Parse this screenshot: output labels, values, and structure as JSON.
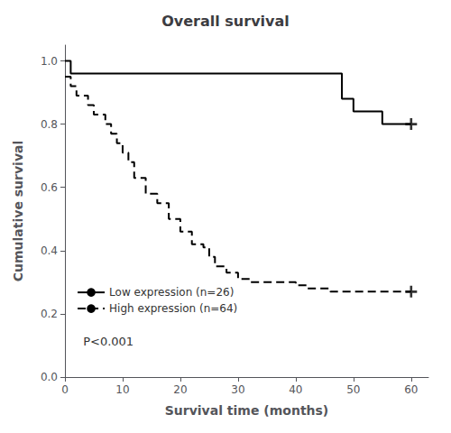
{
  "chart_data": {
    "type": "line",
    "title": "Overall survival",
    "xlabel": "Survival time (months)",
    "ylabel": "Cumulative survival",
    "xlim": [
      0,
      63
    ],
    "ylim": [
      0.0,
      1.05
    ],
    "xticks": [
      0,
      10,
      20,
      30,
      40,
      50,
      60
    ],
    "yticks": [
      {
        "value": 0.0,
        "label": "0.0"
      },
      0.2,
      0.4,
      0.6,
      0.8,
      {
        "value": 1.0,
        "label": "1.0"
      }
    ],
    "grid": false,
    "legend": "lower left",
    "annotation": "P<0.001",
    "series": [
      {
        "name": "Low expression (n=26)",
        "type": "step",
        "color": "#000000",
        "line_style": "solid",
        "x": [
          0,
          1,
          1,
          3,
          3,
          48,
          48,
          50,
          50,
          55,
          55,
          60
        ],
        "values": [
          1.0,
          1.0,
          0.96,
          0.96,
          0.96,
          0.96,
          0.88,
          0.88,
          0.84,
          0.84,
          0.8,
          0.8
        ]
      },
      {
        "name": "High expression (n=64)",
        "type": "step",
        "color": "#000000",
        "line_style": "dashed",
        "x": [
          0,
          1,
          1,
          2,
          2,
          4,
          4,
          5,
          5,
          7,
          7,
          8,
          8,
          9,
          9,
          10,
          10,
          11,
          11,
          12,
          12,
          14,
          14,
          16,
          16,
          18,
          18,
          20,
          20,
          22,
          22,
          24,
          24,
          25,
          25,
          26,
          26,
          28,
          28,
          30,
          30,
          32,
          32,
          34,
          34,
          36,
          36,
          40,
          40,
          42,
          42,
          46,
          46,
          48,
          48,
          50,
          50,
          55,
          55,
          60
        ],
        "values": [
          0.95,
          0.95,
          0.92,
          0.92,
          0.89,
          0.89,
          0.86,
          0.86,
          0.83,
          0.83,
          0.8,
          0.8,
          0.77,
          0.77,
          0.74,
          0.74,
          0.71,
          0.71,
          0.68,
          0.68,
          0.63,
          0.63,
          0.58,
          0.58,
          0.55,
          0.55,
          0.5,
          0.5,
          0.46,
          0.46,
          0.42,
          0.42,
          0.41,
          0.41,
          0.38,
          0.38,
          0.35,
          0.35,
          0.33,
          0.33,
          0.31,
          0.31,
          0.3,
          0.3,
          0.3,
          0.3,
          0.3,
          0.3,
          0.29,
          0.29,
          0.28,
          0.28,
          0.27,
          0.27,
          0.27,
          0.27,
          0.27,
          0.27,
          0.27,
          0.27
        ]
      },
      {
        "type": "scatter",
        "color": "#000000",
        "marker": "plus",
        "x": [
          60
        ],
        "values": [
          0.8
        ]
      },
      {
        "type": "scatter",
        "color": "#000000",
        "marker": "plus",
        "x": [
          60
        ],
        "values": [
          0.27
        ]
      }
    ]
  }
}
